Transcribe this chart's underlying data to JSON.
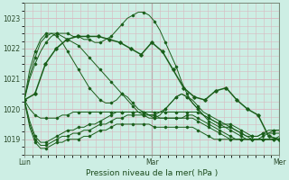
{
  "bg_color": "#cdeee4",
  "grid_color": "#d8b8c0",
  "line_color": "#1a5e1a",
  "marker_color": "#1a5e1a",
  "xlabel": "Pression niveau de la mer( hPa )",
  "day_labels": [
    "Lun",
    "Mar",
    "Mer"
  ],
  "day_positions": [
    0,
    48,
    96
  ],
  "ylim": [
    1018.5,
    1023.5
  ],
  "yticks": [
    1019,
    1020,
    1021,
    1022,
    1023
  ],
  "xlim": [
    0,
    96
  ],
  "series": [
    [
      1020.3,
      1019.6,
      1019.1,
      1018.9,
      1018.9,
      1019.0,
      1019.1,
      1019.2,
      1019.3,
      1019.3,
      1019.4,
      1019.4,
      1019.5,
      1019.5,
      1019.6,
      1019.7,
      1019.8,
      1019.9,
      1019.9,
      1019.9,
      1019.9,
      1019.9,
      1019.9,
      1019.8,
      1019.8,
      1019.7,
      1019.7,
      1019.7,
      1019.7,
      1019.7,
      1019.8,
      1019.8,
      1019.7,
      1019.6,
      1019.5,
      1019.4,
      1019.3,
      1019.2,
      1019.1,
      1019.0,
      1019.0,
      1019.0,
      1019.0,
      1019.0,
      1019.0,
      1019.0,
      1019.0,
      1019.1
    ],
    [
      1020.3,
      1019.5,
      1019.0,
      1018.8,
      1018.8,
      1018.9,
      1019.0,
      1019.1,
      1019.1,
      1019.2,
      1019.2,
      1019.3,
      1019.3,
      1019.4,
      1019.5,
      1019.5,
      1019.6,
      1019.7,
      1019.7,
      1019.8,
      1019.8,
      1019.8,
      1019.8,
      1019.8,
      1019.7,
      1019.7,
      1019.7,
      1019.7,
      1019.7,
      1019.7,
      1019.7,
      1019.7,
      1019.6,
      1019.5,
      1019.4,
      1019.3,
      1019.2,
      1019.1,
      1019.0,
      1019.0,
      1019.0,
      1019.0,
      1019.0,
      1019.0,
      1019.0,
      1019.0,
      1019.0,
      1019.0
    ],
    [
      1020.3,
      1019.4,
      1018.9,
      1018.7,
      1018.7,
      1018.8,
      1018.9,
      1018.9,
      1019.0,
      1019.0,
      1019.0,
      1019.1,
      1019.1,
      1019.2,
      1019.3,
      1019.3,
      1019.4,
      1019.5,
      1019.5,
      1019.5,
      1019.5,
      1019.5,
      1019.5,
      1019.5,
      1019.4,
      1019.4,
      1019.4,
      1019.4,
      1019.4,
      1019.4,
      1019.4,
      1019.4,
      1019.3,
      1019.2,
      1019.1,
      1019.0,
      1019.0,
      1019.0,
      1019.0,
      1019.0,
      1019.0,
      1019.0,
      1019.0,
      1019.0,
      1019.0,
      1019.0,
      1019.0,
      1019.0
    ],
    [
      1020.3,
      1020.0,
      1019.8,
      1019.7,
      1019.7,
      1019.7,
      1019.7,
      1019.8,
      1019.8,
      1019.9,
      1019.9,
      1019.9,
      1019.9,
      1019.9,
      1019.9,
      1019.9,
      1019.9,
      1019.9,
      1019.9,
      1019.9,
      1019.9,
      1019.9,
      1019.9,
      1019.9,
      1019.9,
      1019.9,
      1019.9,
      1019.9,
      1019.9,
      1019.9,
      1019.9,
      1019.9,
      1019.9,
      1019.8,
      1019.7,
      1019.6,
      1019.5,
      1019.4,
      1019.3,
      1019.2,
      1019.1,
      1019.0,
      1019.0,
      1019.0,
      1019.0,
      1019.0,
      1019.0,
      1019.0
    ],
    [
      1020.3,
      1021.0,
      1021.5,
      1021.9,
      1022.2,
      1022.4,
      1022.5,
      1022.5,
      1022.5,
      1022.4,
      1022.4,
      1022.3,
      1022.3,
      1022.2,
      1022.2,
      1022.3,
      1022.4,
      1022.6,
      1022.8,
      1023.0,
      1023.1,
      1023.2,
      1023.2,
      1023.1,
      1022.9,
      1022.6,
      1022.2,
      1021.8,
      1021.4,
      1020.9,
      1020.5,
      1020.2,
      1020.0,
      1019.8,
      1019.7,
      1019.6,
      1019.5,
      1019.5,
      1019.4,
      1019.3,
      1019.2,
      1019.1,
      1019.1,
      1019.1,
      1019.2,
      1019.2,
      1019.2,
      1019.2
    ],
    [
      1020.3,
      1021.1,
      1021.7,
      1022.2,
      1022.4,
      1022.5,
      1022.5,
      1022.4,
      1022.3,
      1022.2,
      1022.1,
      1021.9,
      1021.7,
      1021.5,
      1021.3,
      1021.1,
      1020.9,
      1020.7,
      1020.5,
      1020.4,
      1020.2,
      1020.0,
      1019.9,
      1019.8,
      1019.8,
      1019.9,
      1020.0,
      1020.2,
      1020.4,
      1020.5,
      1020.4,
      1020.3,
      1020.1,
      1019.9,
      1019.8,
      1019.7,
      1019.6,
      1019.5,
      1019.5,
      1019.4,
      1019.3,
      1019.2,
      1019.1,
      1019.1,
      1019.2,
      1019.3,
      1019.3,
      1019.3
    ],
    [
      1020.3,
      1021.3,
      1021.9,
      1022.3,
      1022.5,
      1022.5,
      1022.4,
      1022.2,
      1021.9,
      1021.6,
      1021.3,
      1021.0,
      1020.7,
      1020.5,
      1020.3,
      1020.2,
      1020.2,
      1020.3,
      1020.5,
      1020.3,
      1020.1,
      1019.9,
      1019.8,
      1019.7,
      1019.7,
      1019.8,
      1020.0,
      1020.2,
      1020.4,
      1020.5,
      1020.4,
      1020.2,
      1020.0,
      1019.8,
      1019.6,
      1019.5,
      1019.4,
      1019.4,
      1019.4,
      1019.3,
      1019.2,
      1019.1,
      1019.0,
      1019.0,
      1019.1,
      1019.2,
      1019.3,
      1019.3
    ]
  ],
  "main_series_x": [
    0,
    4,
    8,
    12,
    16,
    20,
    24,
    28,
    32,
    36,
    40,
    44,
    48,
    52,
    56,
    60,
    64,
    68,
    72,
    76,
    80,
    84,
    88,
    92,
    96
  ],
  "main_series": [
    1020.3,
    1020.5,
    1021.5,
    1022.0,
    1022.3,
    1022.4,
    1022.4,
    1022.4,
    1022.3,
    1022.2,
    1022.0,
    1021.8,
    1022.2,
    1021.9,
    1021.3,
    1020.7,
    1020.4,
    1020.3,
    1020.6,
    1020.7,
    1020.3,
    1020.0,
    1019.8,
    1019.1,
    1019.0
  ]
}
